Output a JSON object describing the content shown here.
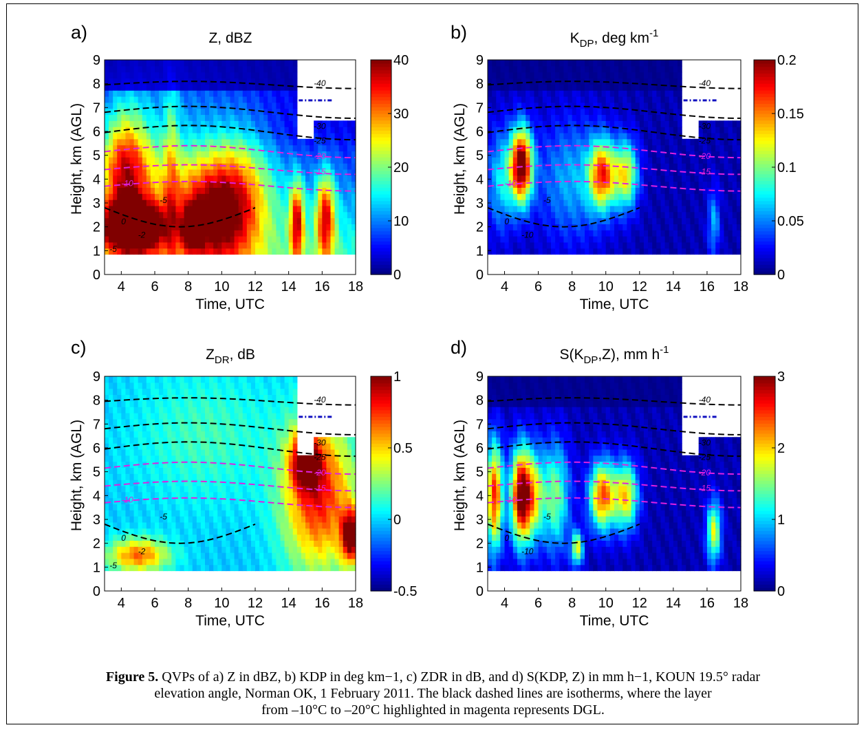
{
  "figure": {
    "caption": {
      "prefix": "Figure 5.",
      "line1": " QVPs of a) Z in dBZ, b) KDP in deg km−1, c) ZDR in dB, and d) S(KDP, Z) in mm h−1, KOUN 19.5° radar",
      "line2": "elevation angle, Norman OK, 1 February 2011. The black dashed lines are isotherms, where the layer",
      "line3": "from –10°C to –20°C highlighted in magenta represents DGL."
    },
    "colors": {
      "isotherm": "#000000",
      "dgl": "#e020e0",
      "freezing_line": "#1010c0"
    }
  },
  "chart_data": [
    {
      "type": "heatmap",
      "panel": "a)",
      "title_main": "Z, dBZ",
      "title_sub": "",
      "title_sup": "",
      "xlabel": "Time, UTC",
      "ylabel": "Height, km (AGL)",
      "xlim": [
        3,
        18
      ],
      "ylim": [
        0,
        9
      ],
      "xticks": [
        "4",
        "6",
        "8",
        "10",
        "12",
        "14",
        "16",
        "18"
      ],
      "yticks": [
        "0",
        "1",
        "2",
        "3",
        "4",
        "5",
        "6",
        "7",
        "8",
        "9"
      ],
      "colorbar_ticks": [
        "0",
        "10",
        "20",
        "30",
        "40"
      ],
      "colorbar_range": [
        0,
        40
      ],
      "isotherm_labels": [
        "-40",
        "-30",
        "-25",
        "-20",
        "-15",
        "-10",
        "-5",
        "0",
        "-2",
        "-5"
      ]
    },
    {
      "type": "heatmap",
      "panel": "b)",
      "title_main": "K",
      "title_sub": "DP",
      "title_tail": ", deg km",
      "title_sup": "-1",
      "xlabel": "Time, UTC",
      "ylabel": "Height, km (AGL)",
      "xlim": [
        3,
        18
      ],
      "ylim": [
        0,
        9
      ],
      "xticks": [
        "4",
        "6",
        "8",
        "10",
        "12",
        "14",
        "16",
        "18"
      ],
      "yticks": [
        "0",
        "1",
        "2",
        "3",
        "4",
        "5",
        "6",
        "7",
        "8",
        "9"
      ],
      "colorbar_ticks": [
        "0",
        "0.05",
        "0.1",
        "0.15",
        "0.2"
      ],
      "colorbar_range": [
        0,
        0.2
      ],
      "isotherm_labels": [
        "-40",
        "-30",
        "-25",
        "-20",
        "-15",
        "-10",
        "-5",
        "0",
        "-10"
      ]
    },
    {
      "type": "heatmap",
      "panel": "c)",
      "title_main": "Z",
      "title_sub": "DR",
      "title_tail": ", dB",
      "title_sup": "",
      "xlabel": "Time, UTC",
      "ylabel": "Height, km (AGL)",
      "xlim": [
        3,
        18
      ],
      "ylim": [
        0,
        9
      ],
      "xticks": [
        "4",
        "6",
        "8",
        "10",
        "12",
        "14",
        "16",
        "18"
      ],
      "yticks": [
        "0",
        "1",
        "2",
        "3",
        "4",
        "5",
        "6",
        "7",
        "8",
        "9"
      ],
      "colorbar_ticks": [
        "-0.5",
        "0",
        "0.5",
        "1"
      ],
      "colorbar_range": [
        -0.5,
        1
      ],
      "isotherm_labels": [
        "-40",
        "-30",
        "-25",
        "-20",
        "-15",
        "-10",
        "-5",
        "0",
        "-2",
        "-5"
      ]
    },
    {
      "type": "heatmap",
      "panel": "d)",
      "title_main": "S(K",
      "title_sub": "DP",
      "title_tail": ",Z), mm h",
      "title_sup": "-1",
      "xlabel": "Time, UTC",
      "ylabel": "Height, km (AGL)",
      "xlim": [
        3,
        18
      ],
      "ylim": [
        0,
        9
      ],
      "xticks": [
        "4",
        "6",
        "8",
        "10",
        "12",
        "14",
        "16",
        "18"
      ],
      "yticks": [
        "0",
        "1",
        "2",
        "3",
        "4",
        "5",
        "6",
        "7",
        "8",
        "9"
      ],
      "colorbar_ticks": [
        "0",
        "1",
        "2",
        "3"
      ],
      "colorbar_range": [
        0,
        3
      ],
      "isotherm_labels": [
        "-40",
        "-30",
        "-25",
        "-20",
        "-15",
        "-10",
        "-5",
        "0",
        "-10"
      ]
    }
  ]
}
